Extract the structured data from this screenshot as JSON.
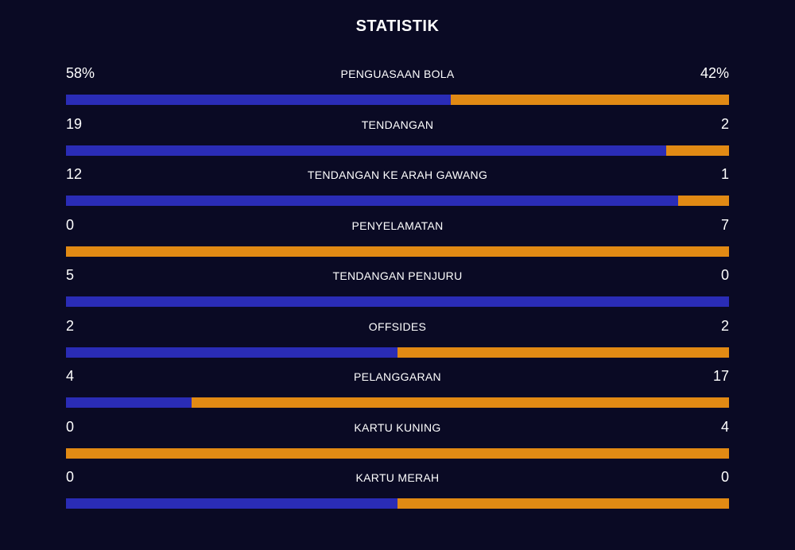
{
  "title": "STATISTIK",
  "colors": {
    "home": "#2a2cb6",
    "away": "#e18a14",
    "background": "#0a0a24"
  },
  "stats": [
    {
      "label": "PENGUASAAN BOLA",
      "home": "58%",
      "away": "42%",
      "home_share": 0.58
    },
    {
      "label": "TENDANGAN",
      "home": "19",
      "away": "2",
      "home_share": 0.905
    },
    {
      "label": "TENDANGAN KE ARAH GAWANG",
      "home": "12",
      "away": "1",
      "home_share": 0.923
    },
    {
      "label": "PENYELAMATAN",
      "home": "0",
      "away": "7",
      "home_share": 0.0
    },
    {
      "label": "TENDANGAN PENJURU",
      "home": "5",
      "away": "0",
      "home_share": 1.0
    },
    {
      "label": "OFFSIDES",
      "home": "2",
      "away": "2",
      "home_share": 0.5
    },
    {
      "label": "PELANGGARAN",
      "home": "4",
      "away": "17",
      "home_share": 0.19
    },
    {
      "label": "KARTU KUNING",
      "home": "0",
      "away": "4",
      "home_share": 0.0
    },
    {
      "label": "KARTU MERAH",
      "home": "0",
      "away": "0",
      "home_share": 0.5
    }
  ]
}
